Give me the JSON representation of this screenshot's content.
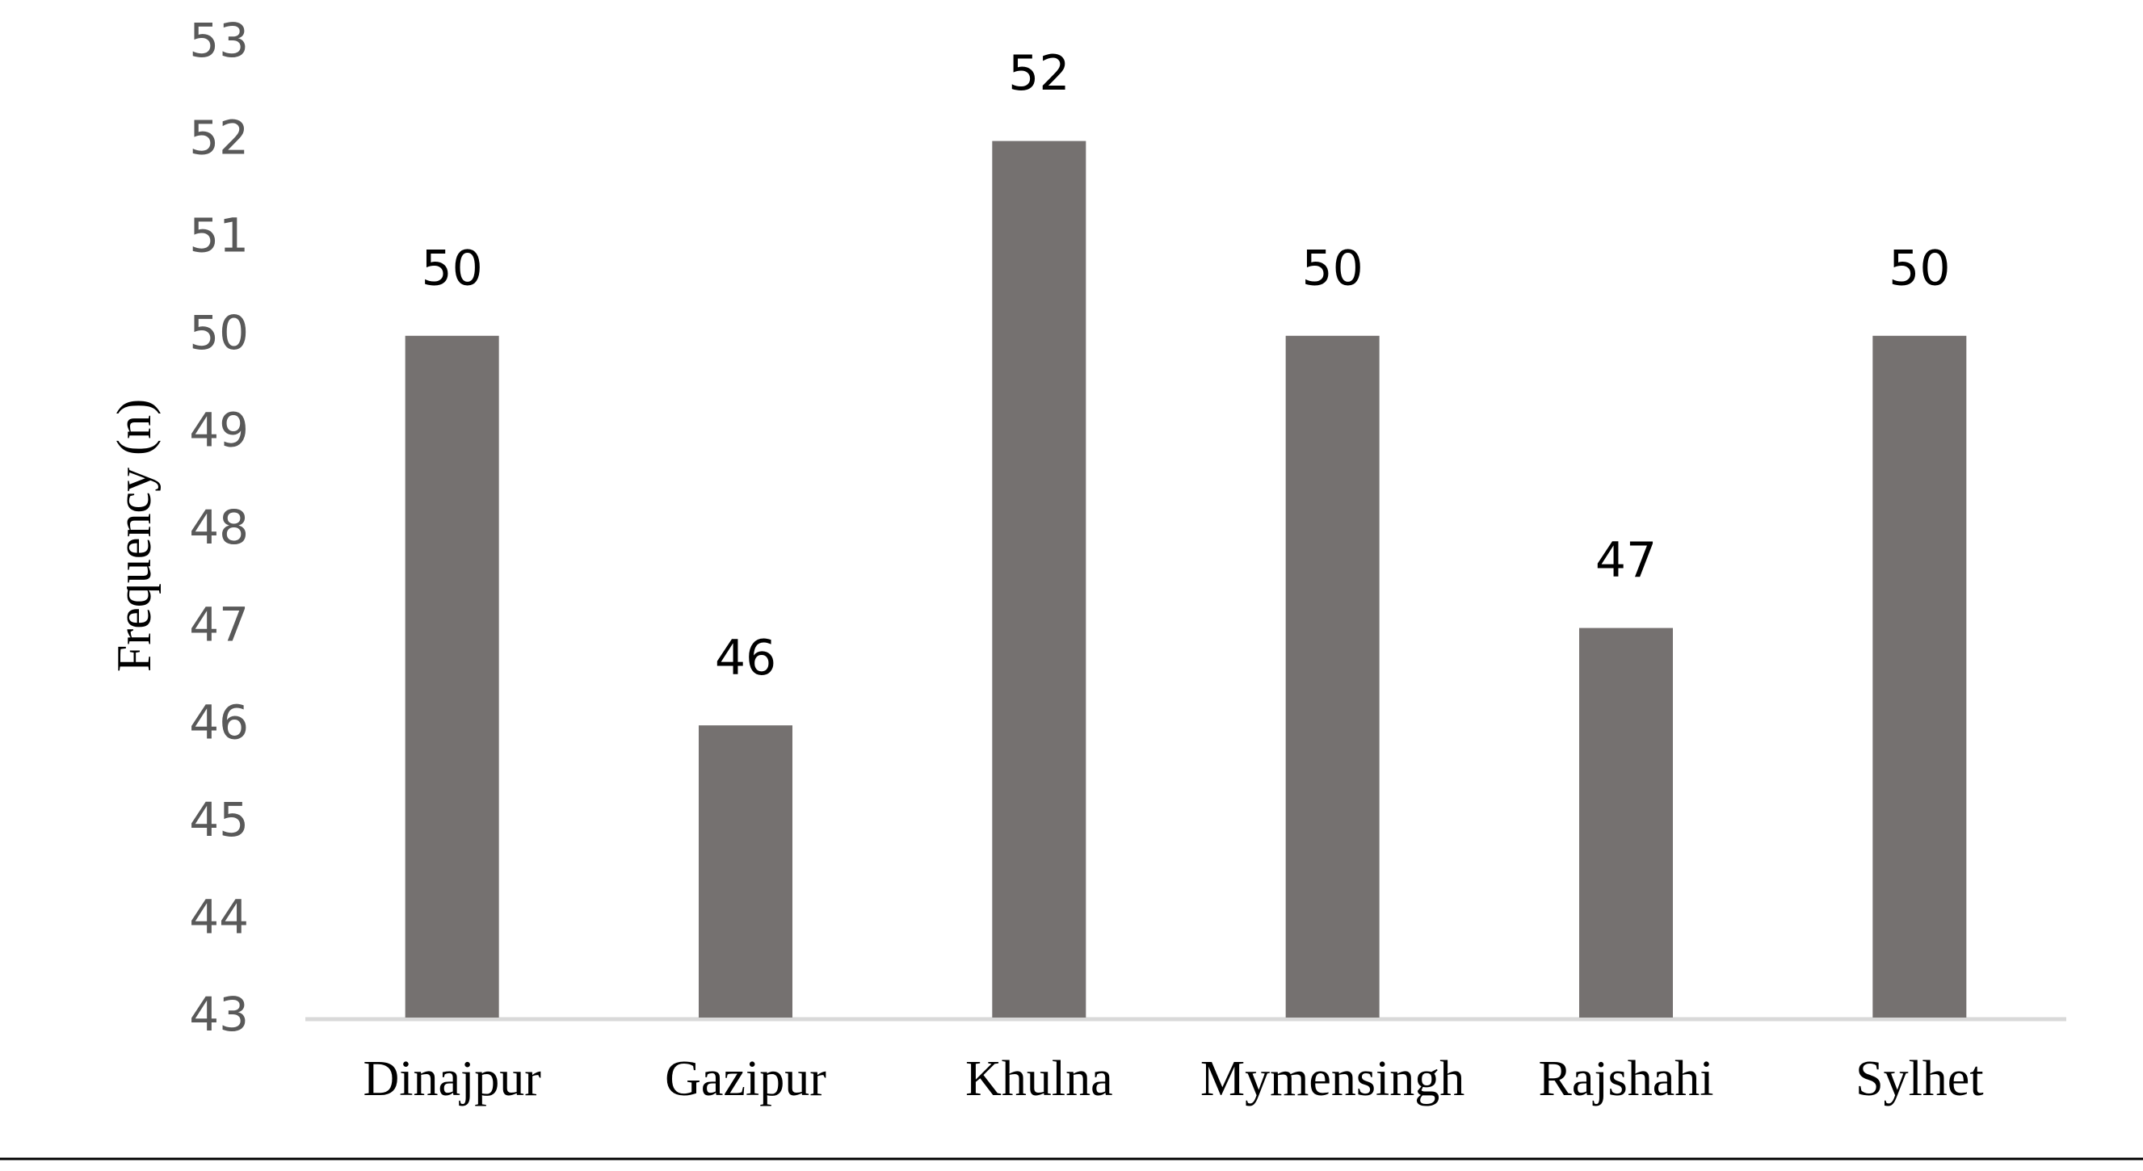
{
  "chart_data": {
    "type": "bar",
    "y_label": "Frequency (n)",
    "categories": [
      "Dinajpur",
      "Gazipur",
      "Khulna",
      "Mymensingh",
      "Rajshahi",
      "Sylhet"
    ],
    "values": [
      50,
      46,
      52,
      50,
      47,
      50
    ],
    "color": "#757170",
    "ylim": [
      43,
      53
    ],
    "yticks": [
      43,
      44,
      45,
      46,
      47,
      48,
      49,
      50,
      51,
      52,
      53
    ],
    "grid": false,
    "data_labels": true
  }
}
